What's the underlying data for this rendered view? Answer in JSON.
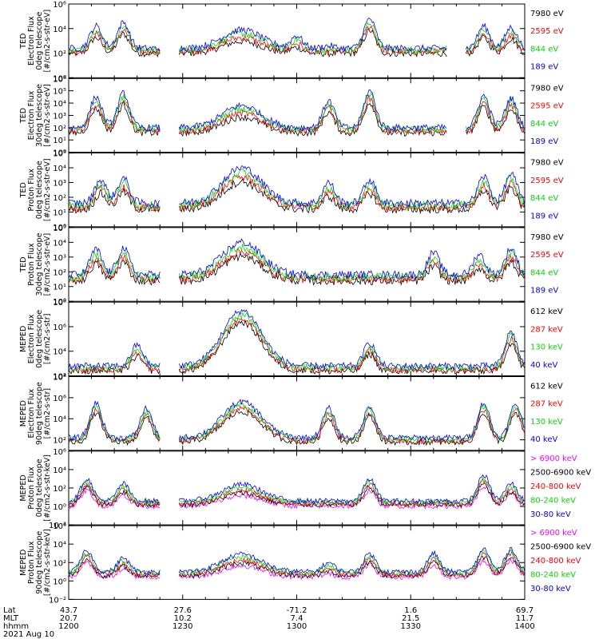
{
  "chart_data": [
    {
      "type": "line",
      "ylabel": [
        "TED",
        "Electron Flux",
        "0deg telescope",
        "[#/cm2-s-str-eV]"
      ],
      "ylog": true,
      "ylim_exp": [
        0,
        6
      ],
      "tick_exps": [
        0,
        2,
        4,
        6
      ],
      "series": [
        {
          "name": "7980 eV",
          "color": "#000000"
        },
        {
          "name": "2595 eV",
          "color": "#ff0000"
        },
        {
          "name": "844 eV",
          "color": "#00dd00"
        },
        {
          "name": "189 eV",
          "color": "#0000ff"
        }
      ],
      "profile": {
        "base": 2.4,
        "events": [
          [
            0.06,
            4.2
          ],
          [
            0.12,
            4.5
          ],
          [
            0.38,
            3.9
          ],
          [
            0.5,
            3.4
          ],
          [
            0.57,
            2.6
          ],
          [
            0.66,
            4.8
          ],
          [
            0.91,
            4.2
          ],
          [
            0.97,
            4.1
          ]
        ]
      }
    },
    {
      "type": "line",
      "ylabel": [
        "TED",
        "Electron Flux",
        "30deg telescope",
        "[#/cm2-s-str-eV]"
      ],
      "ylog": true,
      "ylim_exp": [
        0,
        6
      ],
      "tick_exps": [
        0,
        1,
        2,
        3,
        4,
        5,
        6
      ],
      "series": [
        {
          "name": "7980 eV",
          "color": "#000000"
        },
        {
          "name": "2595 eV",
          "color": "#ff0000"
        },
        {
          "name": "844 eV",
          "color": "#00dd00"
        },
        {
          "name": "189 eV",
          "color": "#0000ff"
        }
      ],
      "profile": {
        "base": 2.0,
        "events": [
          [
            0.06,
            4.5
          ],
          [
            0.12,
            4.8
          ],
          [
            0.38,
            3.8
          ],
          [
            0.57,
            4.2
          ],
          [
            0.66,
            5.0
          ],
          [
            0.91,
            4.6
          ],
          [
            0.97,
            4.4
          ]
        ]
      }
    },
    {
      "type": "line",
      "ylabel": [
        "TED",
        "Proton Flux",
        "0deg telescope",
        "[#/cm2-s-str-eV]"
      ],
      "ylog": true,
      "ylim_exp": [
        0,
        5
      ],
      "tick_exps": [
        0,
        1,
        2,
        3,
        4,
        5
      ],
      "series": [
        {
          "name": "7980 eV",
          "color": "#000000"
        },
        {
          "name": "2595 eV",
          "color": "#ff0000"
        },
        {
          "name": "844 eV",
          "color": "#00dd00"
        },
        {
          "name": "189 eV",
          "color": "#0000ff"
        }
      ],
      "profile": {
        "base": 1.6,
        "events": [
          [
            0.07,
            3.2
          ],
          [
            0.12,
            3.3
          ],
          [
            0.38,
            4.0
          ],
          [
            0.57,
            3.0
          ],
          [
            0.66,
            3.2
          ],
          [
            0.91,
            3.4
          ],
          [
            0.97,
            3.6
          ]
        ]
      }
    },
    {
      "type": "line",
      "ylabel": [
        "TED",
        "Proton Flux",
        "30deg telescope",
        "[#/cm2-s-str-eV]"
      ],
      "ylog": true,
      "ylim_exp": [
        0,
        5
      ],
      "tick_exps": [
        0,
        1,
        2,
        3,
        4,
        5
      ],
      "series": [
        {
          "name": "7980 eV",
          "color": "#000000"
        },
        {
          "name": "2595 eV",
          "color": "#ff0000"
        },
        {
          "name": "844 eV",
          "color": "#00dd00"
        },
        {
          "name": "189 eV",
          "color": "#0000ff"
        }
      ],
      "profile": {
        "base": 1.8,
        "events": [
          [
            0.06,
            3.5
          ],
          [
            0.12,
            3.6
          ],
          [
            0.38,
            4.0
          ],
          [
            0.8,
            3.3
          ],
          [
            0.9,
            3.2
          ],
          [
            0.97,
            3.6
          ]
        ]
      }
    },
    {
      "type": "line",
      "ylabel": [
        "MEPED",
        "Electron Flux",
        "0deg telescope",
        "[#/cm2-s-str]"
      ],
      "ylog": true,
      "ylim_exp": [
        2,
        8
      ],
      "tick_exps": [
        2,
        4,
        6,
        8
      ],
      "series": [
        {
          "name": "612 keV",
          "color": "#000000"
        },
        {
          "name": "287 keV",
          "color": "#ff0000"
        },
        {
          "name": "130 keV",
          "color": "#00dd00"
        },
        {
          "name": "40 keV",
          "color": "#0000ff"
        }
      ],
      "profile": {
        "base": 2.8,
        "events": [
          [
            0.15,
            4.5
          ],
          [
            0.38,
            7.3
          ],
          [
            0.66,
            4.7
          ],
          [
            0.97,
            5.6
          ]
        ]
      }
    },
    {
      "type": "line",
      "ylabel": [
        "MEPED",
        "Electron Flux",
        "90deg telescope",
        "[#/cm2-s-str]"
      ],
      "ylog": true,
      "ylim_exp": [
        1,
        8
      ],
      "tick_exps": [
        2,
        4,
        6,
        8
      ],
      "series": [
        {
          "name": "612 keV",
          "color": "#000000"
        },
        {
          "name": "287 keV",
          "color": "#ff0000"
        },
        {
          "name": "130 keV",
          "color": "#00dd00"
        },
        {
          "name": "40 keV",
          "color": "#0000ff"
        }
      ],
      "profile": {
        "base": 2.2,
        "events": [
          [
            0.06,
            5.5
          ],
          [
            0.17,
            5.0
          ],
          [
            0.38,
            5.6
          ],
          [
            0.57,
            5.0
          ],
          [
            0.66,
            5.2
          ],
          [
            0.91,
            5.5
          ],
          [
            0.98,
            5.4
          ]
        ]
      }
    },
    {
      "type": "line",
      "ylabel": [
        "MEPED",
        "Proton Flux",
        "0deg telescope",
        "[#/cm2-s-str-keV]"
      ],
      "ylog": true,
      "ylim_exp": [
        -2,
        6
      ],
      "tick_exps": [
        -2,
        0,
        2,
        4,
        6
      ],
      "series": [
        {
          "name": "> 6900 keV",
          "color": "#ff00ff"
        },
        {
          "name": "2500-6900 keV",
          "color": "#000000"
        },
        {
          "name": "240-800 keV",
          "color": "#ff0000"
        },
        {
          "name": "80-240 keV",
          "color": "#00dd00"
        },
        {
          "name": "30-80 keV",
          "color": "#0000ff"
        }
      ],
      "profile": {
        "base": 0.6,
        "events": [
          [
            0.04,
            3.0
          ],
          [
            0.12,
            2.5
          ],
          [
            0.38,
            2.4
          ],
          [
            0.66,
            3.0
          ],
          [
            0.91,
            3.4
          ],
          [
            0.97,
            2.5
          ]
        ]
      }
    },
    {
      "type": "line",
      "ylabel": [
        "MEPED",
        "Proton Flux",
        "90deg telescope",
        "[#/cm2-s-str-keV]"
      ],
      "ylog": true,
      "ylim_exp": [
        -2,
        6
      ],
      "tick_exps": [
        -2,
        0,
        2,
        4,
        6
      ],
      "series": [
        {
          "name": "> 6900 keV",
          "color": "#ff00ff"
        },
        {
          "name": "2500-6900 keV",
          "color": "#000000"
        },
        {
          "name": "240-800 keV",
          "color": "#ff0000"
        },
        {
          "name": "80-240 keV",
          "color": "#00dd00"
        },
        {
          "name": "30-80 keV",
          "color": "#0000ff"
        }
      ],
      "profile": {
        "base": 1.0,
        "events": [
          [
            0.04,
            3.3
          ],
          [
            0.12,
            2.5
          ],
          [
            0.38,
            2.9
          ],
          [
            0.57,
            2.0
          ],
          [
            0.66,
            3.0
          ],
          [
            0.8,
            3.0
          ],
          [
            0.91,
            3.5
          ],
          [
            0.97,
            3.5
          ]
        ]
      }
    }
  ],
  "x_axis": {
    "row_labels": [
      "Lat",
      "MLT",
      "hhmm"
    ],
    "date": "2021 Aug 10",
    "ticks": [
      {
        "x": 0.0,
        "lat": "43.7",
        "mlt": "20.7",
        "hhmm": "1200"
      },
      {
        "x": 0.25,
        "lat": "27.6",
        "mlt": "10.2",
        "hhmm": "1230"
      },
      {
        "x": 0.5,
        "lat": "-71.2",
        "mlt": "7.4",
        "hhmm": "1300"
      },
      {
        "x": 0.75,
        "lat": "1.6",
        "mlt": "21.5",
        "hhmm": "1330"
      },
      {
        "x": 1.0,
        "lat": "69.7",
        "mlt": "11.7",
        "hhmm": "1400"
      }
    ]
  }
}
